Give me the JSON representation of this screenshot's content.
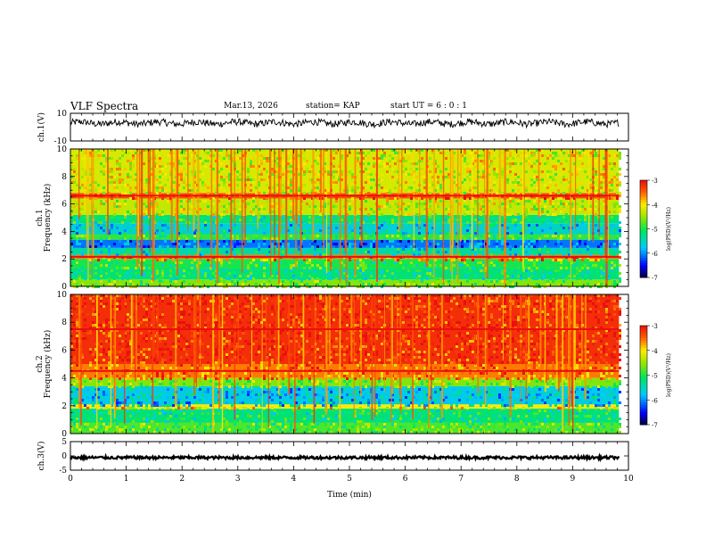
{
  "header": {
    "title": "VLF Spectra",
    "date": "Mar.13, 2026",
    "station": "station= KAP",
    "start": "start  UT =   6 : 0  : 1"
  },
  "chart_data": [
    {
      "type": "line",
      "panel": "ch1-waveform",
      "ylabel": "ch.1(V)",
      "ylim": [
        -10,
        10
      ],
      "yticks": [
        "10",
        "-10"
      ],
      "xlim": [
        0,
        10
      ],
      "x_end": 9.83,
      "baseline": 3.0,
      "amplitude": 2.5
    },
    {
      "type": "heatmap",
      "panel": "ch1-spectrogram",
      "ylabel": "ch.1\nFrequency (kHz)",
      "ylim": [
        0,
        10
      ],
      "yticks": [
        "0",
        "2",
        "4",
        "6",
        "8",
        "10"
      ],
      "xlim": [
        0,
        10
      ],
      "x_end": 9.83,
      "colorbar": {
        "label": "log(PSD)(V²/Hz)",
        "range": [
          -7,
          -3
        ],
        "ticks": [
          "-3",
          "-4",
          "-5",
          "-6",
          "-7"
        ]
      },
      "bands_khz": [
        {
          "from": 0,
          "to": 0.5,
          "level": -4.6
        },
        {
          "from": 0.5,
          "to": 1.3,
          "level": -5.2
        },
        {
          "from": 1.3,
          "to": 2.0,
          "level": -5.0
        },
        {
          "from": 2.0,
          "to": 2.3,
          "level": -3.6
        },
        {
          "from": 2.3,
          "to": 2.8,
          "level": -5.4
        },
        {
          "from": 2.8,
          "to": 3.4,
          "level": -6.1
        },
        {
          "from": 3.4,
          "to": 3.8,
          "level": -4.9
        },
        {
          "from": 3.8,
          "to": 4.6,
          "level": -5.6
        },
        {
          "from": 4.6,
          "to": 5.2,
          "level": -5.2
        },
        {
          "from": 5.2,
          "to": 6.4,
          "level": -4.3
        },
        {
          "from": 6.4,
          "to": 6.8,
          "level": -3.4
        },
        {
          "from": 6.8,
          "to": 10,
          "level": -4.2
        }
      ]
    },
    {
      "type": "heatmap",
      "panel": "ch2-spectrogram",
      "ylabel": "ch.2\nFrequency (kHz)",
      "ylim": [
        0,
        10
      ],
      "yticks": [
        "0",
        "2",
        "4",
        "6",
        "8",
        "10"
      ],
      "xlim": [
        0,
        10
      ],
      "x_end": 9.83,
      "colorbar": {
        "label": "log(PSD)(V²/Hz)",
        "range": [
          -7,
          -3
        ],
        "ticks": [
          "-3",
          "-4",
          "-5",
          "-6",
          "-7"
        ]
      },
      "bands_khz": [
        {
          "from": 0,
          "to": 0.8,
          "level": -4.8
        },
        {
          "from": 0.8,
          "to": 1.8,
          "level": -5.2
        },
        {
          "from": 1.8,
          "to": 2.1,
          "level": -4.0
        },
        {
          "from": 2.1,
          "to": 3.4,
          "level": -5.7
        },
        {
          "from": 3.4,
          "to": 4.0,
          "level": -4.6
        },
        {
          "from": 4.0,
          "to": 5.0,
          "level": -3.6
        },
        {
          "from": 5.0,
          "to": 10,
          "level": -3.2
        }
      ]
    },
    {
      "type": "line",
      "panel": "ch3-waveform",
      "ylabel": "ch.3(V)",
      "ylim": [
        -5,
        5
      ],
      "yticks": [
        "5",
        "0",
        "-5"
      ],
      "xlim": [
        0,
        10
      ],
      "x_end": 9.83,
      "baseline": -0.6,
      "amplitude": 0.5,
      "xlabel": "Time (min)",
      "xticks": [
        "0",
        "1",
        "2",
        "3",
        "4",
        "5",
        "6",
        "7",
        "8",
        "9",
        "10"
      ]
    }
  ],
  "colors": {
    "axis": "#000000",
    "trace": "#000000",
    "background": "#ffffff"
  }
}
